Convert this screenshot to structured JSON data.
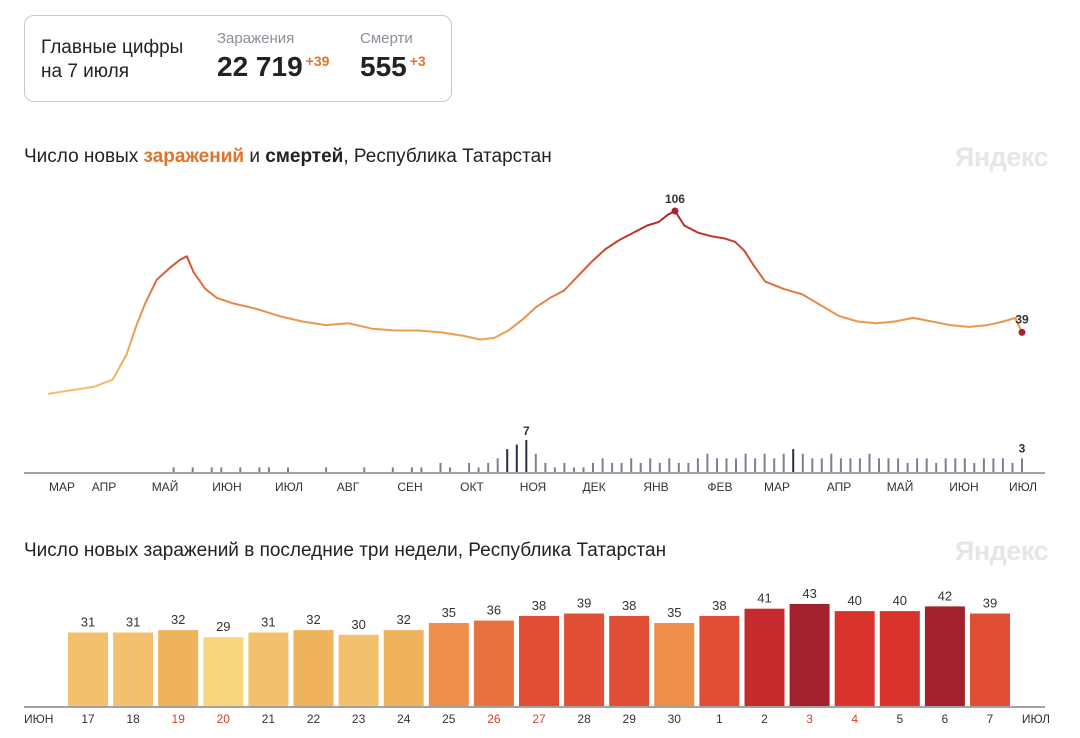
{
  "summary": {
    "title_line1": "Главные цифры",
    "title_line2": "на 7 июля",
    "infections_label": "Заражения",
    "infections_value": "22 719",
    "infections_delta": "+39",
    "deaths_label": "Смерти",
    "deaths_value": "555",
    "deaths_delta": "+3"
  },
  "brand": "Яндекс",
  "chart1_title": {
    "prefix": "Число новых ",
    "infections_word": "заражений",
    "middle": " и ",
    "deaths_word": "смертей",
    "suffix": ", Республика Татарстан"
  },
  "chart2_title": "Число новых заражений в последние три недели, Республика Татарстан",
  "chart_data": [
    {
      "type": "line",
      "x_axis_labels": [
        "МАР",
        "АПР",
        "МАЙ",
        "ИЮН",
        "ИЮЛ",
        "АВГ",
        "СЕН",
        "ОКТ",
        "НОЯ",
        "ДЕК",
        "ЯНВ",
        "ФЕВ",
        "МАР",
        "АПР",
        "МАЙ",
        "ИЮН",
        "ИЮЛ"
      ],
      "series": [
        {
          "name": "заражений",
          "points": [
            [
              0,
              5
            ],
            [
              10,
              7
            ],
            [
              20,
              9
            ],
            [
              28,
              13
            ],
            [
              34,
              27
            ],
            [
              38,
              42
            ],
            [
              42,
              55
            ],
            [
              47,
              68
            ],
            [
              53,
              75
            ],
            [
              57,
              79
            ],
            [
              60,
              81
            ],
            [
              63,
              72
            ],
            [
              68,
              63
            ],
            [
              73,
              58
            ],
            [
              80,
              55
            ],
            [
              90,
              52
            ],
            [
              100,
              48
            ],
            [
              110,
              45
            ],
            [
              120,
              43
            ],
            [
              130,
              44
            ],
            [
              140,
              41
            ],
            [
              150,
              40
            ],
            [
              160,
              40
            ],
            [
              170,
              39
            ],
            [
              180,
              37
            ],
            [
              187,
              35
            ],
            [
              193,
              36
            ],
            [
              199,
              40
            ],
            [
              205,
              46
            ],
            [
              211,
              53
            ],
            [
              217,
              58
            ],
            [
              223,
              62
            ],
            [
              229,
              70
            ],
            [
              235,
              78
            ],
            [
              241,
              85
            ],
            [
              247,
              90
            ],
            [
              253,
              94
            ],
            [
              259,
              98
            ],
            [
              264,
              100
            ],
            [
              268,
              104
            ],
            [
              271,
              106
            ],
            [
              275,
              98
            ],
            [
              281,
              94
            ],
            [
              287,
              92
            ],
            [
              292,
              91
            ],
            [
              297,
              89
            ],
            [
              301,
              84
            ],
            [
              305,
              76
            ],
            [
              310,
              67
            ],
            [
              318,
              63
            ],
            [
              326,
              60
            ],
            [
              334,
              54
            ],
            [
              342,
              48
            ],
            [
              350,
              45
            ],
            [
              358,
              44
            ],
            [
              366,
              45
            ],
            [
              374,
              47
            ],
            [
              382,
              45
            ],
            [
              390,
              43
            ],
            [
              398,
              42
            ],
            [
              406,
              43
            ],
            [
              413,
              45
            ],
            [
              418,
              47
            ],
            [
              421,
              39
            ]
          ],
          "end_label": "39",
          "peak_label": "106"
        },
        {
          "name": "смертей",
          "type": "bar",
          "values": [
            0,
            0,
            0,
            1,
            0,
            1,
            0,
            1,
            1,
            0,
            1,
            0,
            1,
            1,
            0,
            1,
            0,
            0,
            0,
            1,
            0,
            0,
            0,
            1,
            0,
            0,
            1,
            0,
            1,
            1,
            0,
            2,
            1,
            0,
            2,
            1,
            2,
            3,
            5,
            6,
            7,
            4,
            2,
            1,
            2,
            1,
            1,
            2,
            3,
            2,
            2,
            3,
            2,
            3,
            2,
            3,
            2,
            2,
            3,
            4,
            3,
            3,
            3,
            4,
            3,
            4,
            3,
            4,
            5,
            4,
            3,
            3,
            4,
            3,
            3,
            3,
            4,
            3,
            3,
            3,
            2,
            3,
            3,
            2,
            3,
            3,
            3,
            2,
            3,
            3,
            3,
            2,
            3
          ],
          "peak_label": "7",
          "end_label": "3"
        }
      ]
    },
    {
      "type": "bar",
      "categories": [
        "17",
        "18",
        "19",
        "20",
        "21",
        "22",
        "23",
        "24",
        "25",
        "26",
        "27",
        "28",
        "29",
        "30",
        "1",
        "2",
        "3",
        "4",
        "5",
        "6",
        "7"
      ],
      "values": [
        31,
        31,
        32,
        29,
        31,
        32,
        30,
        32,
        35,
        36,
        38,
        39,
        38,
        35,
        38,
        41,
        43,
        40,
        40,
        42,
        39
      ],
      "weekend_indices": [
        2,
        3,
        9,
        10,
        16,
        17
      ],
      "month_labels": [
        "ИЮН",
        "ИЮЛ"
      ]
    }
  ]
}
